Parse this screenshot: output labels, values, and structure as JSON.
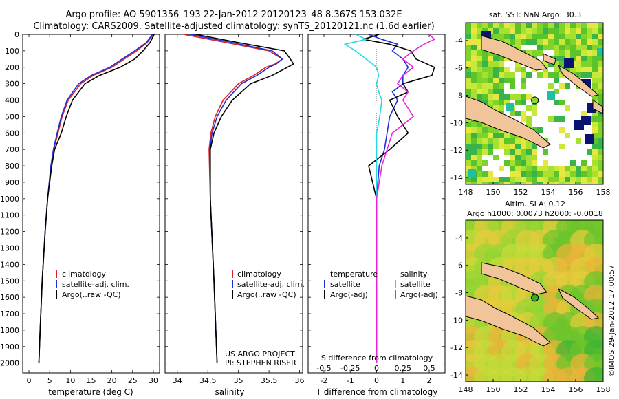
{
  "title": {
    "line1": "Argo profile: AO 5901356_193 22-Jan-2012 20120123_48 8.367S 153.032E",
    "line2": "Climatology: CARS2009. Satellite-adjusted climatology: synTS_20120121.nc (1.6d earlier)"
  },
  "depth_ticks": [
    "0",
    "100",
    "200",
    "300",
    "400",
    "500",
    "600",
    "700",
    "800",
    "900",
    "1000",
    "1100",
    "1200",
    "1300",
    "1400",
    "1500",
    "1600",
    "1700",
    "1800",
    "1900",
    "2000"
  ],
  "colors": {
    "climatology": "#e0201e",
    "satellite": "#1f2fd6",
    "argo": "#000000",
    "sal_satellite": "#22d8e6",
    "sal_argo": "#ee22dd",
    "land": "#f2c49a",
    "ocean_warm": "#8fd630"
  },
  "chart_data": [
    {
      "type": "line",
      "name": "temperature-profile",
      "xlabel": "temperature (deg C)",
      "xlim": [
        -1.5,
        31.5
      ],
      "ylim": [
        2060,
        0
      ],
      "x_ticks": [
        "0",
        "5",
        "10",
        "15",
        "20",
        "25",
        "30"
      ],
      "legend": [
        "climatology",
        "satellite-adj. clim.",
        "Argo(..raw -QC)"
      ],
      "depth": [
        0,
        50,
        100,
        150,
        200,
        250,
        300,
        400,
        500,
        600,
        700,
        800,
        1000,
        1200,
        1500,
        1800,
        2000
      ],
      "series": [
        {
          "name": "climatology",
          "values": [
            30,
            28.5,
            26,
            23,
            20,
            15.5,
            12.5,
            9.5,
            8,
            7,
            6,
            5.3,
            4.5,
            3.9,
            3.2,
            2.7,
            2.4
          ]
        },
        {
          "name": "satellite-adj. clim.",
          "values": [
            29.8,
            28.3,
            25.5,
            22.5,
            19.5,
            15,
            12,
            9.2,
            7.8,
            6.8,
            5.9,
            5.3,
            4.5,
            3.9,
            3.2,
            2.7,
            2.4
          ]
        },
        {
          "name": "Argo(..raw -QC)",
          "values": [
            30.2,
            29.2,
            27.5,
            25.5,
            22,
            17,
            13.5,
            10.5,
            9,
            7.8,
            6.2,
            5.5,
            4.5,
            3.9,
            3.2,
            2.7,
            2.4
          ]
        }
      ]
    },
    {
      "type": "line",
      "name": "salinity-profile",
      "xlabel": "salinity",
      "xlim": [
        33.8,
        36.05
      ],
      "ylim": [
        2060,
        0
      ],
      "x_ticks": [
        "34",
        "34.5",
        "35",
        "35.5",
        "36"
      ],
      "legend": [
        "climatology",
        "satellite-adj. clim.",
        "Argo(..raw -QC)"
      ],
      "annotation": [
        "US ARGO PROJECT",
        "PI: STEPHEN RISER"
      ],
      "depth": [
        0,
        50,
        100,
        150,
        180,
        200,
        250,
        300,
        400,
        500,
        600,
        700,
        1000,
        1500,
        2000
      ],
      "series": [
        {
          "name": "climatology",
          "values": [
            34.1,
            34.8,
            35.5,
            35.72,
            35.6,
            35.45,
            35.25,
            35.0,
            34.75,
            34.62,
            34.55,
            34.52,
            34.54,
            34.6,
            34.65
          ]
        },
        {
          "name": "satellite-adj. clim.",
          "values": [
            34.2,
            34.9,
            35.55,
            35.72,
            35.62,
            35.5,
            35.3,
            35.05,
            34.8,
            34.65,
            34.57,
            34.53,
            34.54,
            34.6,
            34.65
          ]
        },
        {
          "name": "Argo(..raw -QC)",
          "values": [
            34.3,
            35.0,
            35.75,
            35.85,
            35.9,
            35.8,
            35.55,
            35.2,
            34.9,
            34.72,
            34.6,
            34.54,
            34.54,
            34.6,
            34.65
          ]
        }
      ]
    },
    {
      "type": "line",
      "name": "difference-profile",
      "xlabel": "T difference from climatology",
      "xlabel2": "S difference from climatology",
      "xlim": [
        -2.6,
        2.6
      ],
      "ylim": [
        2060,
        0
      ],
      "x_ticks": [
        "-2",
        "-1",
        "0",
        "1",
        "2"
      ],
      "s_ticks": [
        "-0.5",
        "-0.25",
        "0",
        "0.25",
        "0.5"
      ],
      "legend_temperature": [
        "temperature",
        "satellite",
        "Argo(-adj)"
      ],
      "legend_salinity": [
        "salinity",
        "satellite",
        "Argo(-adj)"
      ],
      "depth": [
        0,
        30,
        60,
        100,
        150,
        200,
        250,
        300,
        350,
        400,
        500,
        600,
        700,
        800,
        1000,
        1500,
        2000
      ],
      "series": [
        {
          "name": "T satellite",
          "values": [
            -0.3,
            0.2,
            0.8,
            0.6,
            1.0,
            1.2,
            1.0,
            1.0,
            0.6,
            0.8,
            0.5,
            0.4,
            0.3,
            0.1,
            0.0,
            0.0,
            0.0
          ]
        },
        {
          "name": "T Argo(-adj)",
          "values": [
            0.1,
            -0.5,
            0.5,
            1.3,
            1.5,
            2.2,
            2.1,
            1.0,
            1.2,
            0.5,
            0.8,
            1.2,
            0.5,
            -0.3,
            0.0,
            0.0,
            0.0
          ]
        },
        {
          "name": "S satellite",
          "values": [
            -0.2,
            -0.1,
            -0.3,
            -0.2,
            -0.1,
            0.0,
            0.02,
            0.0,
            0.02,
            0.05,
            0.03,
            0.0,
            0.0,
            0.0,
            0.0,
            0.0,
            0.0
          ]
        },
        {
          "name": "S Argo(-adj)",
          "values": [
            0.5,
            0.55,
            0.45,
            0.35,
            0.25,
            0.35,
            0.25,
            0.2,
            0.3,
            0.25,
            0.35,
            0.15,
            0.1,
            0.05,
            0.0,
            0.0,
            0.0
          ]
        }
      ]
    },
    {
      "type": "heatmap",
      "name": "sst-map",
      "title": "sat. SST: NaN Argo: 30.3",
      "xlim": [
        148,
        158
      ],
      "ylim": [
        -14.5,
        -2.7
      ],
      "x_ticks": [
        "148",
        "150",
        "152",
        "154",
        "156",
        "158"
      ],
      "y_ticks": [
        "-4",
        "-6",
        "-8",
        "-10",
        "-12",
        "-14"
      ],
      "argo_position": {
        "lon": 153.032,
        "lat": -8.367
      }
    },
    {
      "type": "heatmap",
      "name": "sla-map",
      "title": "Altim. SLA: 0.12",
      "subtitle": "Argo h1000: 0.0073 h2000: -0.0018",
      "xlim": [
        148,
        158
      ],
      "ylim": [
        -14.5,
        -2.7
      ],
      "x_ticks": [
        "148",
        "150",
        "152",
        "154",
        "156",
        "158"
      ],
      "y_ticks": [
        "-4",
        "-6",
        "-8",
        "-10",
        "-12",
        "-14"
      ],
      "argo_position": {
        "lon": 153.032,
        "lat": -8.367
      }
    }
  ],
  "credit": "©IMOS 29-Jan-2012 17:00:57"
}
